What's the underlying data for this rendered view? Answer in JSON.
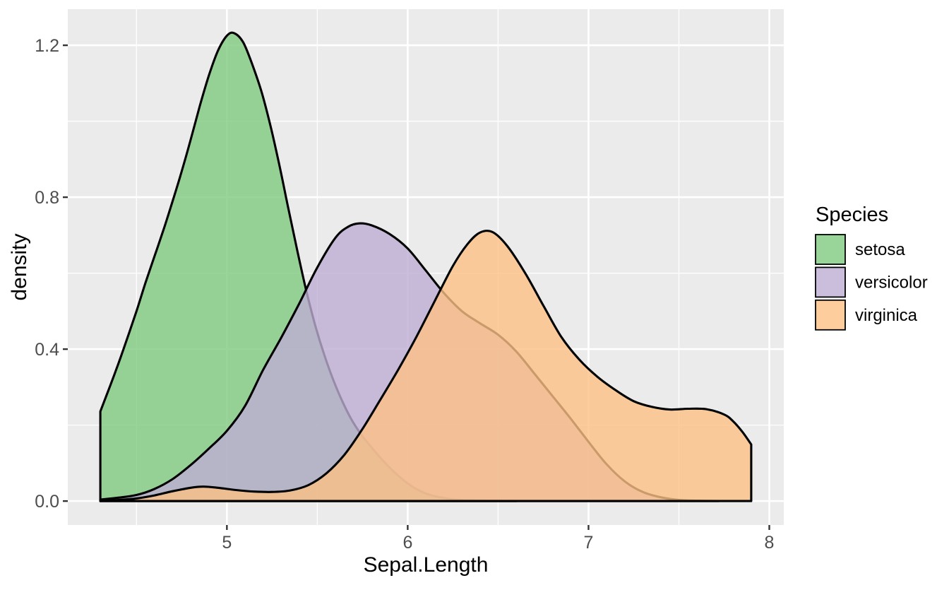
{
  "chart_data": {
    "type": "area",
    "variant": "kernel-density",
    "title": "",
    "xlabel": "Sepal.Length",
    "ylabel": "density",
    "xlim": [
      4.12,
      8.08
    ],
    "ylim": [
      -0.063,
      1.295
    ],
    "grid": true,
    "x_ticks": {
      "values": [
        5,
        6,
        7,
        8
      ],
      "labels": [
        "5",
        "6",
        "7",
        "8"
      ]
    },
    "y_ticks": {
      "values": [
        0,
        0.4,
        0.8,
        1.2
      ],
      "labels": [
        "0.0",
        "0.4",
        "0.8",
        "1.2"
      ]
    },
    "x_minor": [
      4.5,
      5.5,
      6.5,
      7.5
    ],
    "y_minor": [
      0.2,
      0.6,
      1.0
    ],
    "legend": {
      "title": "Species",
      "position": "right",
      "entries": [
        "setosa",
        "versicolor",
        "virginica"
      ]
    },
    "colors": {
      "background": "#FFFFFF",
      "panel_bg": "#EBEBEB",
      "grid": "#FFFFFF",
      "outline": "#000000",
      "tick": "#333333",
      "tick_label": "#4D4D4D",
      "title": "#000000"
    },
    "fill_opacity": 0.8,
    "series": [
      {
        "name": "setosa",
        "color": "#7FC97F",
        "points": [
          [
            4.3,
            0.236
          ],
          [
            4.35,
            0.298
          ],
          [
            4.4,
            0.362
          ],
          [
            4.45,
            0.43
          ],
          [
            4.5,
            0.5
          ],
          [
            4.55,
            0.575
          ],
          [
            4.6,
            0.645
          ],
          [
            4.65,
            0.715
          ],
          [
            4.7,
            0.79
          ],
          [
            4.75,
            0.868
          ],
          [
            4.8,
            0.952
          ],
          [
            4.85,
            1.04
          ],
          [
            4.9,
            1.12
          ],
          [
            4.95,
            1.185
          ],
          [
            5.0,
            1.225
          ],
          [
            5.04,
            1.232
          ],
          [
            5.09,
            1.208
          ],
          [
            5.14,
            1.15
          ],
          [
            5.19,
            1.08
          ],
          [
            5.24,
            0.99
          ],
          [
            5.29,
            0.885
          ],
          [
            5.34,
            0.77
          ],
          [
            5.39,
            0.658
          ],
          [
            5.44,
            0.552
          ],
          [
            5.49,
            0.46
          ],
          [
            5.54,
            0.383
          ],
          [
            5.59,
            0.317
          ],
          [
            5.64,
            0.261
          ],
          [
            5.69,
            0.214
          ],
          [
            5.74,
            0.177
          ],
          [
            5.79,
            0.147
          ],
          [
            5.84,
            0.119
          ],
          [
            5.89,
            0.093
          ],
          [
            5.94,
            0.07
          ],
          [
            5.99,
            0.05
          ],
          [
            6.04,
            0.034
          ],
          [
            6.09,
            0.022
          ],
          [
            6.14,
            0.014
          ],
          [
            6.19,
            0.009
          ],
          [
            6.24,
            0.005
          ],
          [
            6.29,
            0.003
          ],
          [
            6.34,
            0.002
          ],
          [
            6.44,
            0.001
          ],
          [
            6.6,
            0.0002
          ]
        ]
      },
      {
        "name": "versicolor",
        "color": "#BEAED4",
        "points": [
          [
            4.3,
            0.004
          ],
          [
            4.4,
            0.009
          ],
          [
            4.5,
            0.016
          ],
          [
            4.6,
            0.032
          ],
          [
            4.7,
            0.058
          ],
          [
            4.8,
            0.095
          ],
          [
            4.9,
            0.138
          ],
          [
            5.0,
            0.185
          ],
          [
            5.1,
            0.25
          ],
          [
            5.2,
            0.345
          ],
          [
            5.3,
            0.43
          ],
          [
            5.4,
            0.52
          ],
          [
            5.5,
            0.615
          ],
          [
            5.6,
            0.693
          ],
          [
            5.67,
            0.722
          ],
          [
            5.73,
            0.731
          ],
          [
            5.8,
            0.726
          ],
          [
            5.9,
            0.703
          ],
          [
            6.0,
            0.665
          ],
          [
            6.1,
            0.607
          ],
          [
            6.2,
            0.548
          ],
          [
            6.3,
            0.5
          ],
          [
            6.4,
            0.468
          ],
          [
            6.5,
            0.438
          ],
          [
            6.6,
            0.394
          ],
          [
            6.7,
            0.336
          ],
          [
            6.8,
            0.277
          ],
          [
            6.9,
            0.218
          ],
          [
            7.0,
            0.156
          ],
          [
            7.1,
            0.097
          ],
          [
            7.2,
            0.052
          ],
          [
            7.3,
            0.024
          ],
          [
            7.4,
            0.01
          ],
          [
            7.5,
            0.003
          ],
          [
            7.6,
            0.001
          ],
          [
            7.72,
            0.0002
          ]
        ]
      },
      {
        "name": "virginica",
        "color": "#FDC086",
        "points": [
          [
            4.3,
            0.001
          ],
          [
            4.4,
            0.003
          ],
          [
            4.5,
            0.007
          ],
          [
            4.6,
            0.015
          ],
          [
            4.7,
            0.026
          ],
          [
            4.8,
            0.035
          ],
          [
            4.87,
            0.038
          ],
          [
            4.95,
            0.035
          ],
          [
            5.05,
            0.029
          ],
          [
            5.15,
            0.025
          ],
          [
            5.25,
            0.024
          ],
          [
            5.35,
            0.028
          ],
          [
            5.45,
            0.042
          ],
          [
            5.55,
            0.073
          ],
          [
            5.65,
            0.122
          ],
          [
            5.75,
            0.19
          ],
          [
            5.85,
            0.268
          ],
          [
            5.95,
            0.348
          ],
          [
            6.05,
            0.434
          ],
          [
            6.15,
            0.527
          ],
          [
            6.25,
            0.619
          ],
          [
            6.33,
            0.676
          ],
          [
            6.4,
            0.707
          ],
          [
            6.47,
            0.708
          ],
          [
            6.55,
            0.672
          ],
          [
            6.65,
            0.6
          ],
          [
            6.75,
            0.515
          ],
          [
            6.85,
            0.432
          ],
          [
            6.95,
            0.372
          ],
          [
            7.05,
            0.327
          ],
          [
            7.15,
            0.292
          ],
          [
            7.25,
            0.263
          ],
          [
            7.35,
            0.248
          ],
          [
            7.45,
            0.241
          ],
          [
            7.55,
            0.243
          ],
          [
            7.65,
            0.242
          ],
          [
            7.75,
            0.228
          ],
          [
            7.8,
            0.21
          ],
          [
            7.85,
            0.183
          ],
          [
            7.9,
            0.149
          ]
        ]
      }
    ]
  },
  "layout_note": "ggplot2 theme_gray density plot"
}
